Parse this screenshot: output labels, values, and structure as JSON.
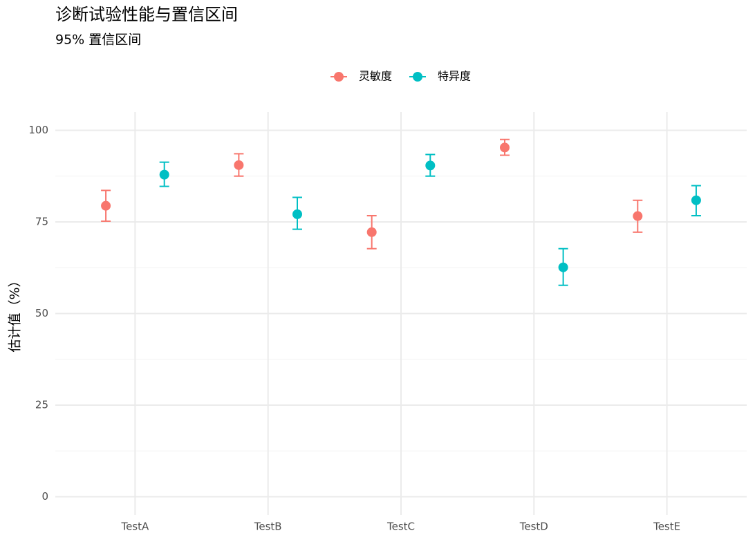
{
  "chart_data": {
    "type": "errorbar",
    "title": "诊断试验性能与置信区间",
    "subtitle": "95% 置信区间",
    "y_label": "估计值（%）",
    "categories": [
      "TestA",
      "TestB",
      "TestC",
      "TestD",
      "TestE"
    ],
    "series": [
      {
        "name": "灵敏度",
        "color": "#F8766D",
        "values": [
          79.4,
          90.5,
          72.2,
          95.3,
          76.6
        ],
        "lower": [
          75.2,
          87.5,
          67.7,
          93.2,
          72.2
        ],
        "upper": [
          83.6,
          93.6,
          76.7,
          97.5,
          80.9
        ]
      },
      {
        "name": "特异度",
        "color": "#00BFC4",
        "values": [
          87.9,
          77.1,
          90.4,
          62.6,
          80.9
        ],
        "lower": [
          84.7,
          73.0,
          87.5,
          57.7,
          76.7
        ],
        "upper": [
          91.3,
          81.7,
          93.4,
          67.7,
          84.9
        ]
      }
    ],
    "ylim": [
      -5,
      105
    ],
    "yticks": [
      0,
      25,
      50,
      75,
      100
    ],
    "yminor": [
      12.5,
      37.5,
      62.5,
      87.5
    ],
    "grid": true,
    "legend_position": "top"
  }
}
